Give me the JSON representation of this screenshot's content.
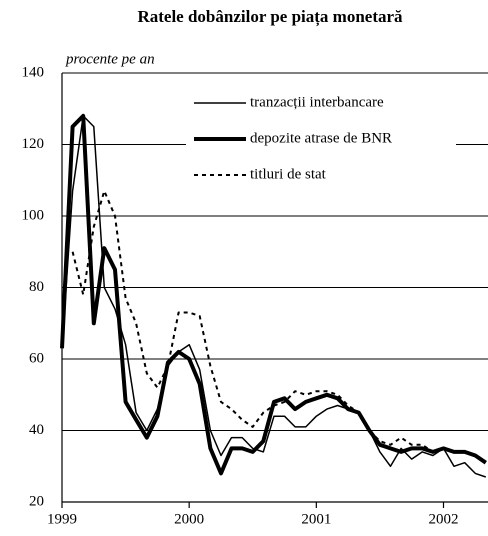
{
  "chart_data": {
    "type": "line",
    "title": "Ratele dobânzilor pe piața monetară",
    "subtitle": "procente pe an",
    "x": [
      1999,
      1999.083,
      1999.167,
      1999.25,
      1999.333,
      1999.417,
      1999.5,
      1999.583,
      1999.667,
      1999.75,
      1999.833,
      1999.917,
      2000,
      2000.083,
      2000.167,
      2000.25,
      2000.333,
      2000.417,
      2000.5,
      2000.583,
      2000.667,
      2000.75,
      2000.833,
      2000.917,
      2001,
      2001.083,
      2001.167,
      2001.25,
      2001.333,
      2001.417,
      2001.5,
      2001.583,
      2001.667,
      2001.75,
      2001.833,
      2001.917,
      2002,
      2002.083,
      2002.167,
      2002.25,
      2002.333
    ],
    "series": [
      {
        "name": "tranzacții interbancare",
        "color": "#000000",
        "values": [
          63,
          107,
          128,
          125,
          80,
          74,
          64,
          45,
          40,
          46,
          58,
          62,
          64,
          57,
          40,
          33,
          38,
          38,
          35,
          34,
          44,
          44,
          41,
          41,
          44,
          46,
          47,
          46,
          45,
          40,
          34,
          30,
          35,
          32,
          34,
          33,
          35,
          30,
          31,
          28,
          27
        ]
      },
      {
        "name": "depozite atrase de BNR",
        "color": "#000000",
        "values": [
          63,
          125,
          128,
          70,
          91,
          85,
          48,
          43,
          38,
          44,
          59,
          62,
          60,
          53,
          35,
          28,
          35,
          35,
          34,
          37,
          48,
          49,
          46,
          48,
          49,
          50,
          49,
          46,
          45,
          40,
          36,
          35,
          34,
          35,
          35,
          34,
          35,
          34,
          34,
          33,
          31
        ]
      },
      {
        "name": "titluri de stat",
        "color": "#000000",
        "values": [
          null,
          90,
          78,
          97,
          107,
          100,
          77,
          70,
          56,
          52,
          58,
          73,
          73,
          72,
          58,
          48,
          46,
          43,
          41,
          45,
          47,
          48,
          51,
          50,
          51,
          51,
          50,
          47,
          45,
          40,
          37,
          36,
          38,
          36,
          36,
          34,
          35,
          null,
          null,
          null,
          null
        ]
      }
    ],
    "xlim": [
      1999,
      2002.35
    ],
    "xticks": [
      1999,
      2000,
      2001,
      2002
    ],
    "ylim": [
      20,
      140
    ],
    "yticks": [
      20,
      40,
      60,
      80,
      100,
      120,
      140
    ],
    "grid": true,
    "legend": "top-right"
  }
}
